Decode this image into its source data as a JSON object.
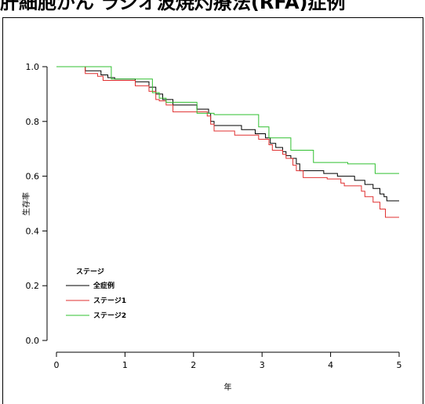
{
  "title": "肝細胞がん ラジオ波焼灼療法(RFA)症例",
  "chart_data": {
    "type": "line",
    "step": true,
    "title": "肝細胞がん ラジオ波焼灼療法(RFA)症例",
    "xlabel": "年",
    "ylabel": "生存率",
    "xlim": [
      0,
      5
    ],
    "ylim": [
      0,
      1.0
    ],
    "x_ticks": [
      "0",
      "1",
      "2",
      "3",
      "4",
      "5"
    ],
    "y_ticks": [
      "0.0",
      "0.2",
      "0.4",
      "0.6",
      "0.8",
      "1.0"
    ],
    "grid": false,
    "legend": {
      "title": "ステージ",
      "position": "bottom-left"
    },
    "series": [
      {
        "name": "全症例",
        "color": "#000000",
        "points": [
          [
            0,
            1.0
          ],
          [
            0.42,
            0.985
          ],
          [
            0.65,
            0.97
          ],
          [
            0.75,
            0.96
          ],
          [
            0.85,
            0.955
          ],
          [
            1.15,
            0.945
          ],
          [
            1.35,
            0.925
          ],
          [
            1.45,
            0.9
          ],
          [
            1.55,
            0.88
          ],
          [
            1.7,
            0.86
          ],
          [
            2.05,
            0.845
          ],
          [
            2.22,
            0.83
          ],
          [
            2.25,
            0.8
          ],
          [
            2.3,
            0.785
          ],
          [
            2.7,
            0.77
          ],
          [
            2.9,
            0.755
          ],
          [
            3.05,
            0.74
          ],
          [
            3.12,
            0.72
          ],
          [
            3.2,
            0.705
          ],
          [
            3.3,
            0.69
          ],
          [
            3.35,
            0.675
          ],
          [
            3.42,
            0.665
          ],
          [
            3.5,
            0.645
          ],
          [
            3.55,
            0.62
          ],
          [
            3.9,
            0.61
          ],
          [
            4.1,
            0.6
          ],
          [
            4.35,
            0.585
          ],
          [
            4.5,
            0.57
          ],
          [
            4.62,
            0.555
          ],
          [
            4.72,
            0.535
          ],
          [
            4.78,
            0.525
          ],
          [
            4.82,
            0.51
          ],
          [
            5.0,
            0.51
          ]
        ]
      },
      {
        "name": "ステージ1",
        "color": "#e03030",
        "points": [
          [
            0,
            1.0
          ],
          [
            0.42,
            0.975
          ],
          [
            0.6,
            0.965
          ],
          [
            0.68,
            0.95
          ],
          [
            1.15,
            0.93
          ],
          [
            1.35,
            0.91
          ],
          [
            1.45,
            0.88
          ],
          [
            1.5,
            0.875
          ],
          [
            1.6,
            0.86
          ],
          [
            1.7,
            0.835
          ],
          [
            2.2,
            0.82
          ],
          [
            2.25,
            0.79
          ],
          [
            2.3,
            0.765
          ],
          [
            2.6,
            0.75
          ],
          [
            2.95,
            0.735
          ],
          [
            3.1,
            0.715
          ],
          [
            3.15,
            0.695
          ],
          [
            3.3,
            0.68
          ],
          [
            3.35,
            0.665
          ],
          [
            3.45,
            0.64
          ],
          [
            3.5,
            0.62
          ],
          [
            3.6,
            0.595
          ],
          [
            3.95,
            0.59
          ],
          [
            4.15,
            0.575
          ],
          [
            4.2,
            0.565
          ],
          [
            4.45,
            0.545
          ],
          [
            4.5,
            0.525
          ],
          [
            4.62,
            0.505
          ],
          [
            4.72,
            0.48
          ],
          [
            4.8,
            0.45
          ],
          [
            5.0,
            0.45
          ]
        ]
      },
      {
        "name": "ステージ2",
        "color": "#30c030",
        "points": [
          [
            0,
            1.0
          ],
          [
            0.8,
            0.955
          ],
          [
            1.4,
            0.905
          ],
          [
            1.5,
            0.885
          ],
          [
            1.6,
            0.87
          ],
          [
            2.05,
            0.83
          ],
          [
            2.3,
            0.825
          ],
          [
            2.95,
            0.78
          ],
          [
            3.1,
            0.74
          ],
          [
            3.42,
            0.695
          ],
          [
            3.75,
            0.65
          ],
          [
            4.25,
            0.645
          ],
          [
            4.65,
            0.61
          ],
          [
            5.0,
            0.61
          ]
        ]
      }
    ]
  }
}
